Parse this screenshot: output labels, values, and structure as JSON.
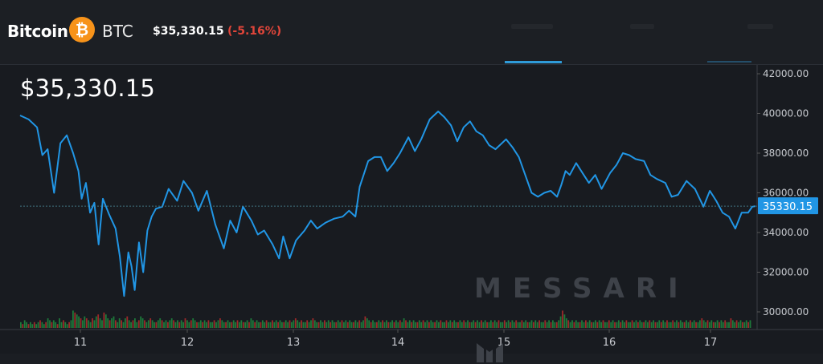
{
  "header": {
    "coin_name": "Bitcoin",
    "coin_logo_glyph": "₿",
    "coin_symbol": "BTC",
    "price": "$35,330.15",
    "change": "(-5.16%)"
  },
  "colors": {
    "line": "#2196e5",
    "accent_tab": "#2f9bd8",
    "negative": "#e0453a",
    "volume_up": "#1d7a3a",
    "volume_down": "#9c2a2a",
    "btc_orange": "#f7931a"
  },
  "icons": [
    "bitcoin-logo-icon",
    "messari-logo-icon"
  ],
  "watermark": "MESSARI",
  "chart_data": {
    "type": "line",
    "title": "$35,330.15",
    "x_tick_labels": [
      "11",
      "12",
      "13",
      "14",
      "15",
      "16",
      "17"
    ],
    "y_tick_labels": [
      "42000.00",
      "40000.00",
      "38000.00",
      "36000.00",
      "34000.00",
      "32000.00",
      "30000.00"
    ],
    "ylim": [
      29400,
      42300
    ],
    "xlim": [
      10.42,
      17.35
    ],
    "grid": false,
    "current_value_label": "35330.15",
    "current_value": 35330.15,
    "series": [
      {
        "x": [
          10.42,
          10.5,
          10.58,
          10.63,
          10.68,
          10.74,
          10.8,
          10.86,
          10.92,
          10.97,
          11.0,
          11.04,
          11.08,
          11.12,
          11.16,
          11.2,
          11.26,
          11.32,
          11.36,
          11.4,
          11.44,
          11.47,
          11.5,
          11.54,
          11.58,
          11.62,
          11.66,
          11.7,
          11.76,
          11.82,
          11.9,
          11.96,
          12.04,
          12.1,
          12.18,
          12.26,
          12.34,
          12.4,
          12.46,
          12.52,
          12.6,
          12.66,
          12.72,
          12.8,
          12.86,
          12.9,
          12.96,
          13.02,
          13.1,
          13.16,
          13.22,
          13.3,
          13.38,
          13.46,
          13.52,
          13.58,
          13.62,
          13.7,
          13.76,
          13.82,
          13.88,
          13.94,
          14.0,
          14.08,
          14.14,
          14.2,
          14.28,
          14.36,
          14.42,
          14.48,
          14.54,
          14.6,
          14.66,
          14.72,
          14.78,
          14.84,
          14.9,
          15.0,
          15.06,
          15.12,
          15.18,
          15.24,
          15.3,
          15.36,
          15.42,
          15.48,
          15.52,
          15.56,
          15.6,
          15.66,
          15.72,
          15.78,
          15.84,
          15.9,
          15.98,
          16.04,
          16.1,
          16.16,
          16.22,
          16.3,
          16.36,
          16.42,
          16.5,
          16.56,
          16.62,
          16.7,
          16.78,
          16.86,
          16.92,
          16.98,
          17.04,
          17.1,
          17.16,
          17.22,
          17.28,
          17.32,
          17.35
        ],
        "y": [
          39900,
          39700,
          39300,
          37900,
          38200,
          36000,
          38500,
          38900,
          38000,
          37100,
          35700,
          36500,
          35000,
          35500,
          33400,
          35700,
          34900,
          34200,
          32800,
          30800,
          33000,
          32300,
          31100,
          33500,
          32000,
          34100,
          34800,
          35200,
          35300,
          36200,
          35600,
          36600,
          36000,
          35100,
          36100,
          34400,
          33200,
          34600,
          34000,
          35300,
          34600,
          33900,
          34100,
          33400,
          32700,
          33800,
          32700,
          33600,
          34100,
          34600,
          34200,
          34500,
          34700,
          34800,
          35100,
          34800,
          36300,
          37600,
          37800,
          37800,
          37100,
          37500,
          38000,
          38800,
          38100,
          38700,
          39700,
          40100,
          39800,
          39400,
          38600,
          39300,
          39600,
          39100,
          38900,
          38400,
          38200,
          38700,
          38300,
          37800,
          36900,
          36000,
          35800,
          36000,
          36100,
          35800,
          36400,
          37100,
          36900,
          37500,
          37000,
          36500,
          36900,
          36200,
          37000,
          37400,
          38000,
          37900,
          37700,
          37600,
          36900,
          36700,
          36500,
          35800,
          35900,
          36600,
          36200,
          35300,
          36100,
          35600,
          35000,
          34800,
          34200,
          35000,
          35000,
          35300,
          35330
        ]
      }
    ],
    "volume_bars": [
      3,
      2,
      4,
      3,
      2,
      3,
      2,
      3,
      2,
      3,
      4,
      3,
      2,
      3,
      5,
      4,
      3,
      4,
      3,
      2,
      5,
      3,
      4,
      3,
      2,
      3,
      4,
      9,
      8,
      7,
      6,
      5,
      4,
      6,
      5,
      4,
      3,
      5,
      4,
      6,
      7,
      5,
      4,
      8,
      7,
      5,
      4,
      5,
      6,
      4,
      3,
      5,
      4,
      3,
      5,
      6,
      4,
      3,
      4,
      5,
      3,
      4,
      6,
      5,
      4,
      3,
      4,
      5,
      4,
      3,
      3,
      4,
      5,
      4,
      3,
      4,
      3,
      4,
      5,
      4,
      3,
      4,
      3,
      4,
      3,
      5,
      4,
      3,
      4,
      5,
      4,
      3,
      3,
      4,
      3,
      4,
      3,
      4,
      3,
      3,
      4,
      3,
      4,
      5,
      4,
      3,
      3,
      4,
      3,
      3,
      4,
      3,
      4,
      3,
      4,
      3,
      3,
      4,
      3,
      5,
      4,
      3,
      4,
      3,
      3,
      4,
      3,
      4,
      3,
      3,
      4,
      3,
      4,
      3,
      4,
      3,
      3,
      4,
      3,
      4,
      3,
      4,
      5,
      4,
      3,
      4,
      3,
      3,
      4,
      3,
      4,
      5,
      4,
      3,
      3,
      4,
      3,
      4,
      3,
      4,
      3,
      4,
      3,
      3,
      4,
      3,
      4,
      3,
      4,
      3,
      4,
      3,
      3,
      4,
      3,
      4,
      3,
      4,
      6,
      5,
      4,
      3,
      4,
      3,
      3,
      4,
      3,
      4,
      3,
      4,
      3,
      3,
      4,
      3,
      4,
      3,
      4,
      3,
      5,
      4,
      3,
      4,
      3,
      4,
      3,
      3,
      4,
      3,
      4,
      3,
      4,
      3,
      4,
      3,
      3,
      4,
      3,
      4,
      3,
      3,
      4,
      3,
      4,
      3,
      4,
      3,
      3,
      4,
      3,
      4,
      3,
      4,
      3,
      3,
      4,
      3,
      4,
      3,
      4,
      3,
      4,
      3,
      3,
      4,
      3,
      4,
      3,
      4,
      3,
      3,
      4,
      3,
      4,
      3,
      4,
      3,
      4,
      3,
      3,
      4,
      3,
      4,
      3,
      3,
      4,
      3,
      4,
      3,
      4,
      3,
      3,
      4,
      3,
      4,
      3,
      4,
      3,
      3,
      4,
      6,
      9,
      7,
      5,
      4,
      3,
      4,
      3,
      4,
      3,
      3,
      4,
      3,
      4,
      3,
      4,
      3,
      3,
      4,
      3,
      4,
      3,
      4,
      3,
      3,
      4,
      3,
      4,
      3,
      3,
      4,
      3,
      4,
      3,
      4,
      3,
      3,
      4,
      3,
      4,
      3,
      4,
      3,
      3,
      4,
      3,
      4,
      3,
      4,
      3,
      3,
      4,
      3,
      4,
      3,
      4,
      3,
      3,
      4,
      3,
      4,
      3,
      4,
      3,
      3,
      4,
      3,
      4,
      3,
      4,
      3,
      3,
      4,
      5,
      4,
      3,
      4,
      3,
      4,
      3,
      3,
      4,
      3,
      4,
      3,
      4,
      3,
      3,
      5,
      4,
      3,
      4,
      3,
      4,
      3,
      3,
      4,
      3,
      4
    ]
  }
}
